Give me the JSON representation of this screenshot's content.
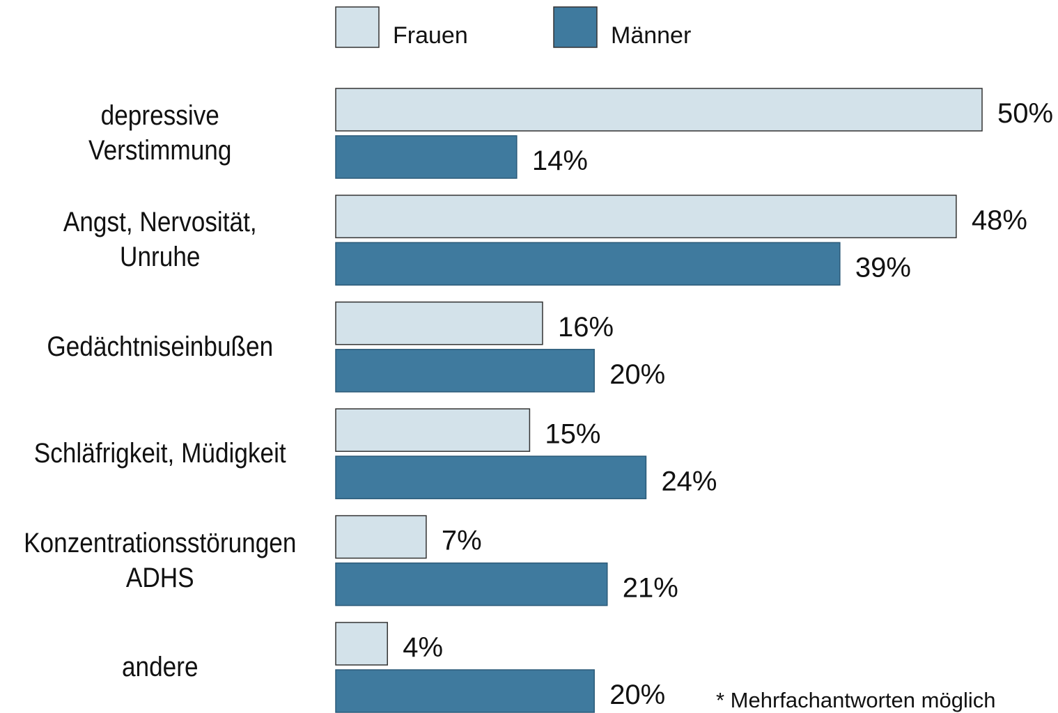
{
  "chart_data": {
    "type": "grouped-bar-horizontal",
    "categories": [
      "depressive\nVerstimmung",
      "Angst, Nervosität,\nUnruhe",
      "Gedächtniseinbußen",
      "Schläfrigkeit, Müdigkeit",
      "Konzentrationsstörungen\nADHS",
      "andere"
    ],
    "series": [
      {
        "name": "Frauen",
        "color": "#d3e2ea",
        "values": [
          50,
          48,
          16,
          15,
          7,
          4
        ],
        "value_labels": [
          "50%",
          "48%",
          "16%",
          "15%",
          "7%",
          "4%"
        ]
      },
      {
        "name": "Männer",
        "color": "#3f7a9e",
        "values": [
          14,
          39,
          20,
          24,
          21,
          20
        ],
        "value_labels": [
          "14%",
          "39%",
          "20%",
          "24%",
          "21%",
          "20%"
        ]
      }
    ],
    "xlim": [
      0,
      50
    ],
    "footnote": "* Mehrfachantworten möglich"
  }
}
